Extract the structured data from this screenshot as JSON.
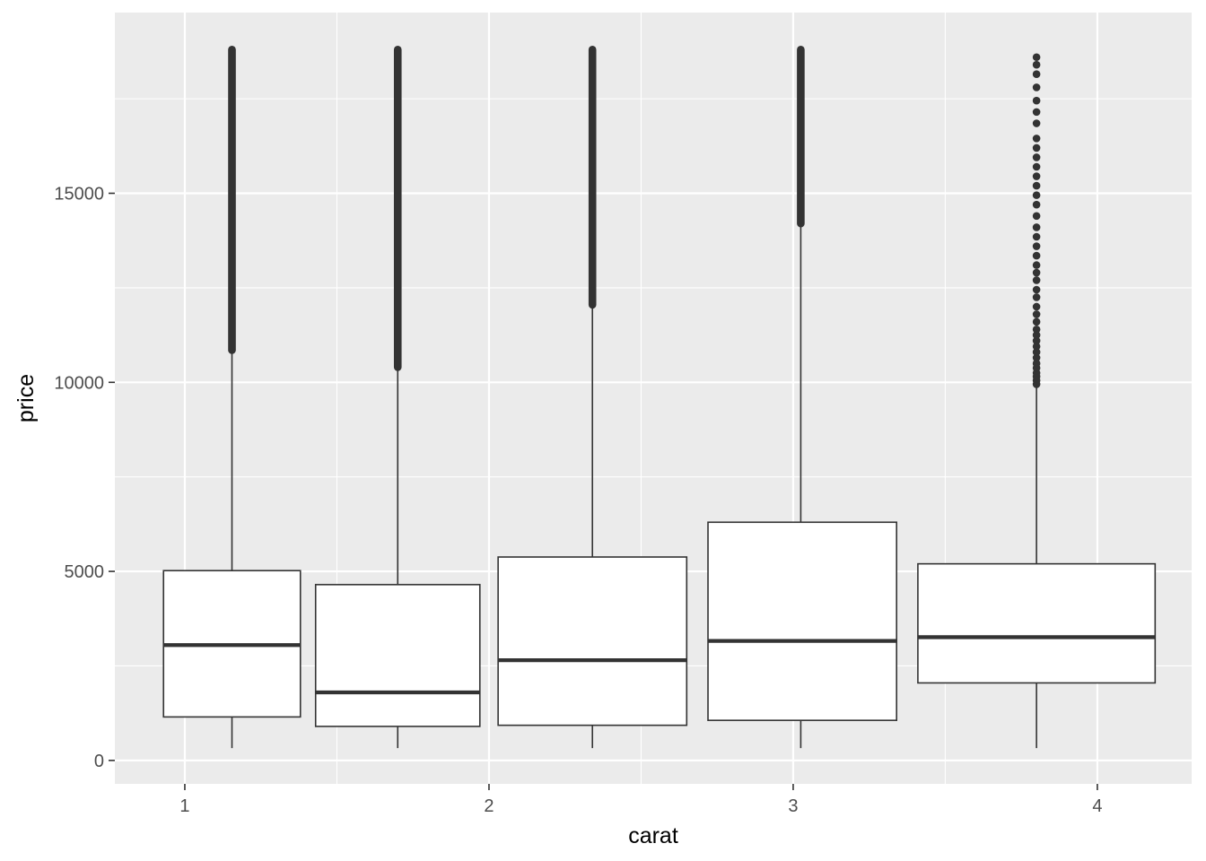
{
  "chart_data": {
    "type": "boxplot",
    "title": "",
    "xlabel": "carat",
    "ylabel": "price",
    "xlim": [
      0.77,
      4.31
    ],
    "ylim": [
      -620,
      19780
    ],
    "x_ticks": [
      1,
      2,
      3,
      4
    ],
    "x_tick_labels": [
      "1",
      "2",
      "3",
      "4"
    ],
    "y_ticks": [
      0,
      5000,
      10000,
      15000
    ],
    "y_tick_labels": [
      "0",
      "5000",
      "10000",
      "15000"
    ],
    "x_minor_ticks": [
      1.5,
      2.5,
      3.5
    ],
    "y_minor_ticks": [
      2500,
      7500,
      12500,
      17500
    ],
    "grid": true,
    "colors": {
      "panel_background": "#ebebeb",
      "grid_line": "#ffffff",
      "box_fill": "#ffffff",
      "box_line": "#333333",
      "outlier": "#333333",
      "tick_label": "#4d4d4d"
    },
    "boxes": [
      {
        "x": 1.155,
        "xmin": 0.93,
        "xmax": 1.38,
        "lower_whisker": 326,
        "q1": 1150,
        "median": 3050,
        "q3": 5020,
        "upper_whisker": 10850,
        "outlier_range": [
          10850,
          18800
        ]
      },
      {
        "x": 1.7,
        "xmin": 1.43,
        "xmax": 1.97,
        "lower_whisker": 326,
        "q1": 900,
        "median": 1800,
        "q3": 4650,
        "upper_whisker": 10400,
        "outlier_range": [
          10400,
          18800
        ]
      },
      {
        "x": 2.34,
        "xmin": 2.03,
        "xmax": 2.65,
        "lower_whisker": 326,
        "q1": 930,
        "median": 2650,
        "q3": 5380,
        "upper_whisker": 12050,
        "outlier_range": [
          12050,
          18800
        ]
      },
      {
        "x": 3.025,
        "xmin": 2.72,
        "xmax": 3.34,
        "lower_whisker": 326,
        "q1": 1060,
        "median": 3160,
        "q3": 6300,
        "upper_whisker": 14200,
        "outlier_range": [
          14200,
          18800
        ]
      },
      {
        "x": 3.8,
        "xmin": 3.41,
        "xmax": 4.19,
        "lower_whisker": 326,
        "q1": 2050,
        "median": 3260,
        "q3": 5200,
        "upper_whisker": 9950,
        "outlier_range": [
          9950,
          18600
        ],
        "outliers": [
          9950,
          10050,
          10150,
          10250,
          10380,
          10500,
          10650,
          10800,
          10950,
          11100,
          11250,
          11400,
          11600,
          11800,
          12000,
          12250,
          12450,
          12700,
          12900,
          13100,
          13350,
          13600,
          13850,
          14100,
          14400,
          14700,
          14950,
          15200,
          15450,
          15700,
          15950,
          16200,
          16450,
          16850,
          17150,
          17450,
          17800,
          18150,
          18400,
          18600
        ]
      }
    ]
  }
}
